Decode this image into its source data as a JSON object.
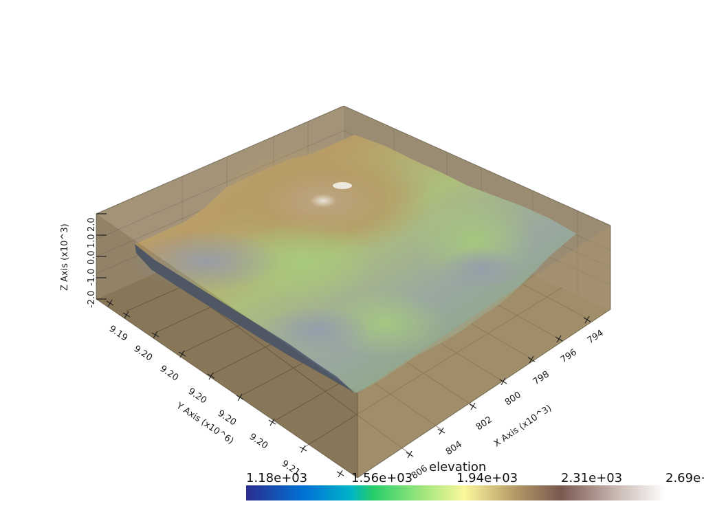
{
  "axes": {
    "x": {
      "title": "X Axis (x10^3)",
      "ticks": [
        "794",
        "796",
        "798",
        "800",
        "802",
        "804",
        "806"
      ]
    },
    "y": {
      "title": "Y Axis (x10^6)",
      "ticks": [
        "9.19",
        "9.20",
        "9.20",
        "9.20",
        "9.20",
        "9.20",
        "9.21"
      ]
    },
    "z": {
      "title": "Z Axis (x10^3)",
      "ticks": [
        "-2.0",
        "-1.0",
        "0.0",
        "1.0",
        "2.0"
      ]
    }
  },
  "colorbar": {
    "title": "elevation",
    "labels": [
      "1.18e+03",
      "1.56e+03",
      "1.94e+03",
      "2.31e+03",
      "2.69e+"
    ],
    "colors": [
      "#2b2d8f",
      "#00a6f0",
      "#1ed07a",
      "#a6e87a",
      "#f8f49a",
      "#b3945e",
      "#7d5a50",
      "#c9b8b3",
      "#ffffff"
    ]
  },
  "colors": {
    "box": "#8a7a5e",
    "terrain_low": "#7f8fa8",
    "terrain_mid": "#9ccb7a",
    "terrain_high": "#b39a66",
    "peak": "#f4f1ec"
  }
}
